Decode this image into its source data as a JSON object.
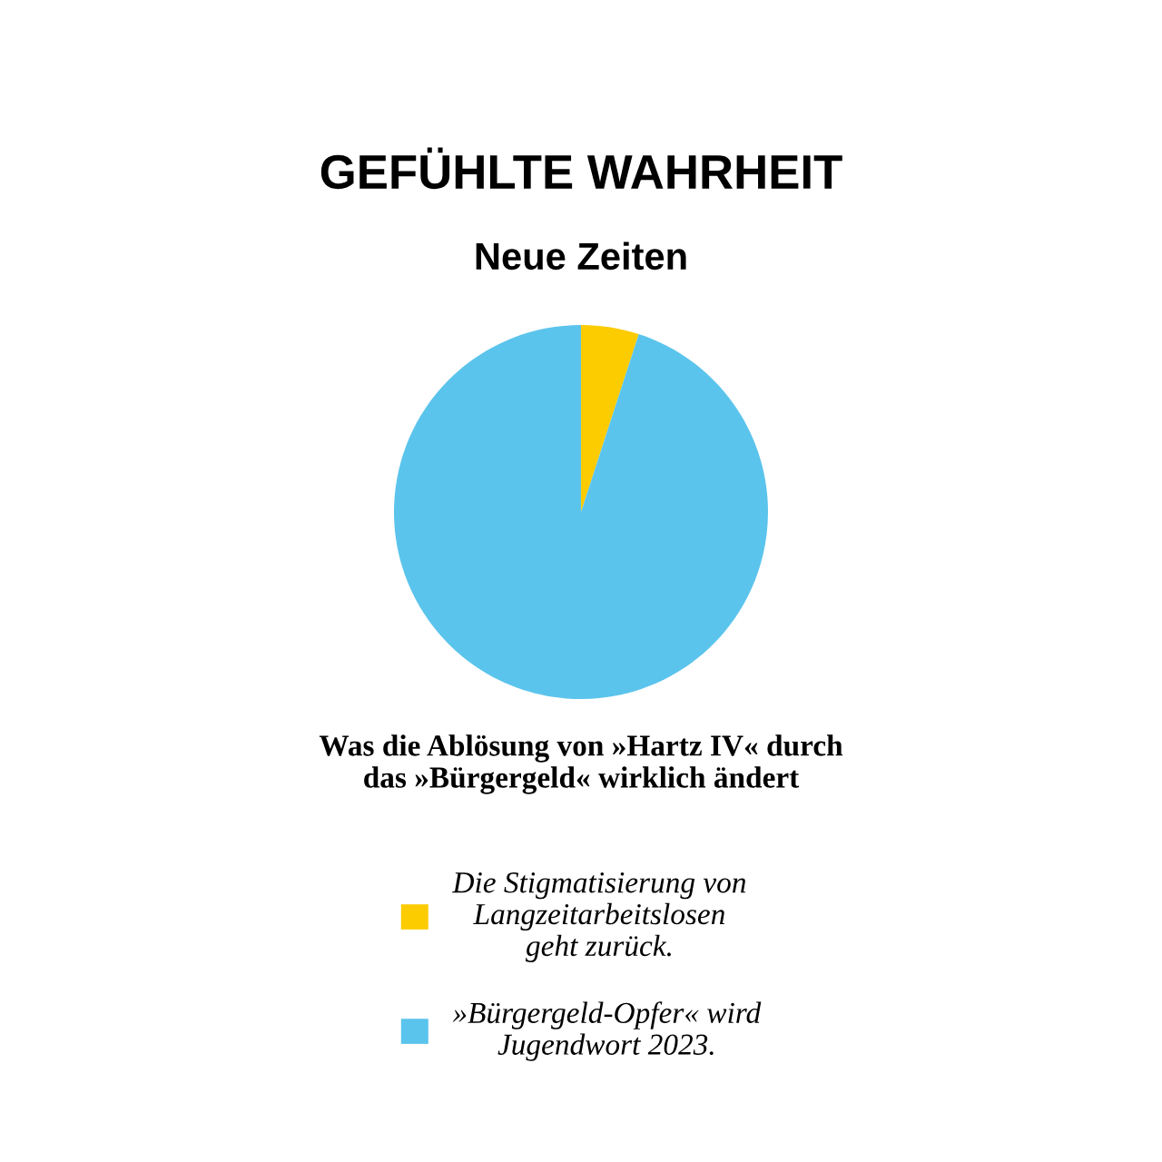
{
  "chart_data": {
    "type": "pie",
    "title": "GEFÜHLTE WAHRHEIT",
    "subtitle": "Neue Zeiten",
    "categories": [
      "Die Stigmatisierung von\nLangzeitarbeitslosen\ngeht zurück.",
      "»Bürgergeld-Opfer« wird\nJugendwort 2023."
    ],
    "values": [
      5,
      95
    ],
    "colors": [
      "#fccb00",
      "#5bc4ec"
    ],
    "annotations": [
      "Was die Ablösung von »Hartz IV« durch\ndas »Bürgergeld« wirklich ändert"
    ],
    "legend": "bottom"
  }
}
